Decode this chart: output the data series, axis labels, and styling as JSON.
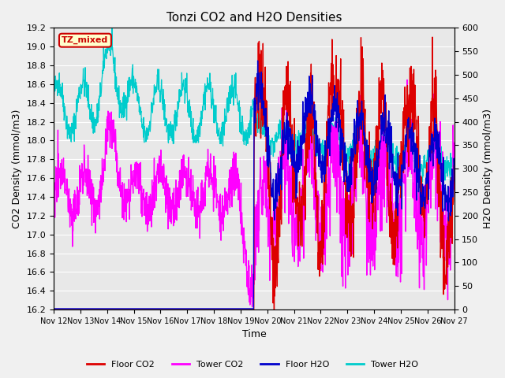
{
  "title": "Tonzi CO2 and H2O Densities",
  "xlabel": "Time",
  "ylabel_left": "CO2 Density (mmol/m3)",
  "ylabel_right": "H2O Density (mmol/m3)",
  "ylim_left": [
    16.2,
    19.2
  ],
  "ylim_right": [
    0,
    600
  ],
  "yticks_left": [
    16.2,
    16.4,
    16.6,
    16.8,
    17.0,
    17.2,
    17.4,
    17.6,
    17.8,
    18.0,
    18.2,
    18.4,
    18.6,
    18.8,
    19.0,
    19.2
  ],
  "yticks_right": [
    0,
    50,
    100,
    150,
    200,
    250,
    300,
    350,
    400,
    450,
    500,
    550,
    600
  ],
  "xtick_labels": [
    "Nov 12",
    "Nov 13",
    "Nov 14",
    "Nov 15",
    "Nov 16",
    "Nov 17",
    "Nov 18",
    "Nov 19",
    "Nov 20",
    "Nov 21",
    "Nov 22",
    "Nov 23",
    "Nov 24",
    "Nov 25",
    "Nov 26",
    "Nov 27"
  ],
  "annotation_text": "TZ_mixed",
  "annotation_bg": "#ffffcc",
  "annotation_border": "#cc0000",
  "colors": {
    "floor_co2": "#dd0000",
    "tower_co2": "#ff00ff",
    "floor_h2o": "#0000cc",
    "tower_h2o": "#00cccc"
  },
  "legend_labels": [
    "Floor CO2",
    "Tower CO2",
    "Floor H2O",
    "Tower H2O"
  ],
  "background_color": "#e8e8e8",
  "grid_color": "#ffffff",
  "fig_bg": "#f0f0f0"
}
